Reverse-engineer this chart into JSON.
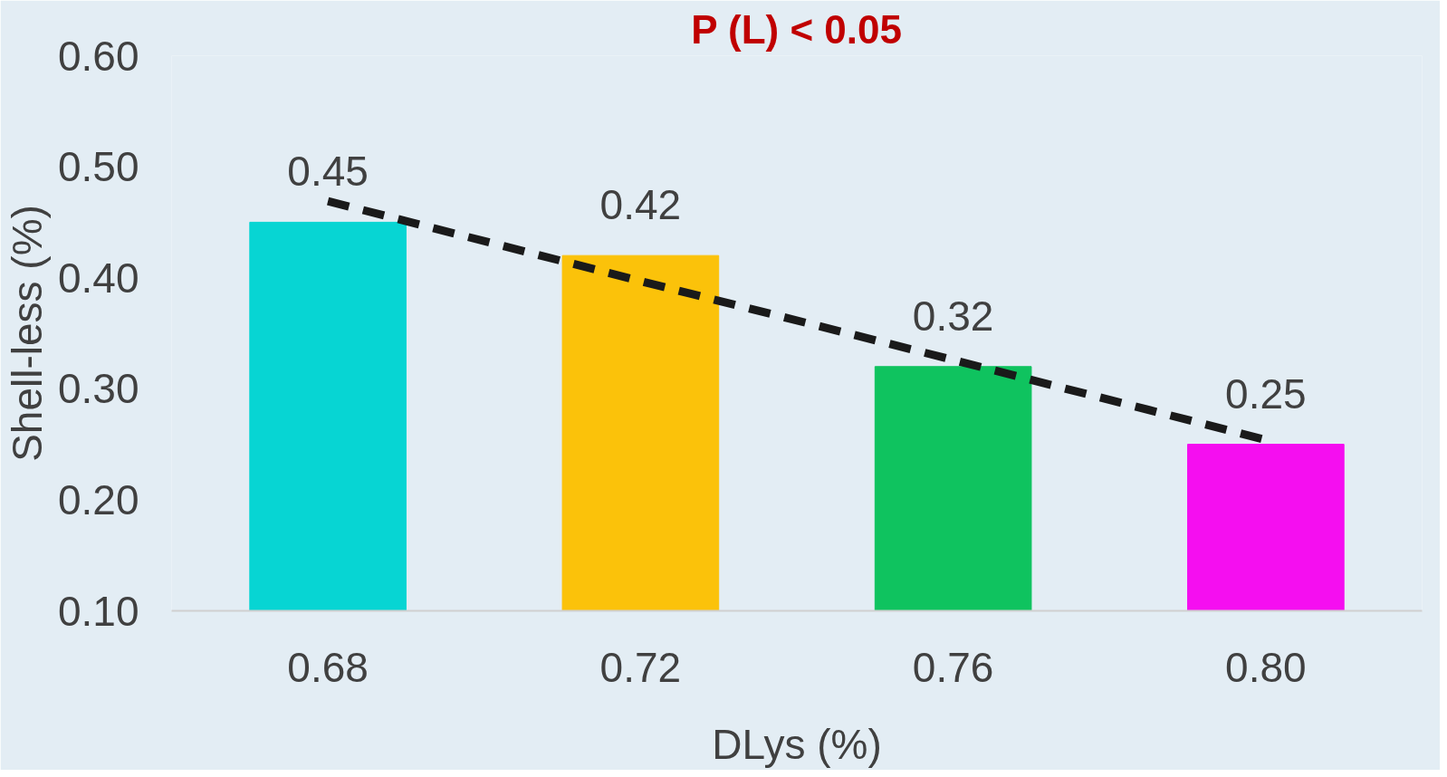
{
  "chart_data": {
    "type": "bar",
    "annotations": [
      "P (L) < 0.05"
    ],
    "xlabel": "DLys (%)",
    "ylabel": "Shell-less (%)",
    "categories": [
      "0.68",
      "0.72",
      "0.76",
      "0.80"
    ],
    "series": [
      {
        "colors": [
          "#07d5d3",
          "#fbc20a",
          "#0fc35f",
          "#f50ef0"
        ],
        "values": [
          0.45,
          0.42,
          0.32,
          0.25
        ],
        "value_labels": [
          "0.45",
          "0.42",
          "0.32",
          "0.25"
        ]
      },
      {
        "type": "line",
        "color": "#1a1a1a",
        "line_style": "dashed",
        "values": [
          0.469,
          0.397,
          0.326,
          0.254
        ]
      }
    ],
    "ylim": [
      0.1,
      0.6
    ],
    "yticks": [
      {
        "value": 0.1,
        "label": "0.10"
      },
      {
        "value": 0.2,
        "label": "0.20"
      },
      {
        "value": 0.3,
        "label": "0.30"
      },
      {
        "value": 0.4,
        "label": "0.40"
      },
      {
        "value": 0.5,
        "label": "0.50"
      },
      {
        "value": 0.6,
        "label": "0.60"
      }
    ],
    "grid": false
  }
}
